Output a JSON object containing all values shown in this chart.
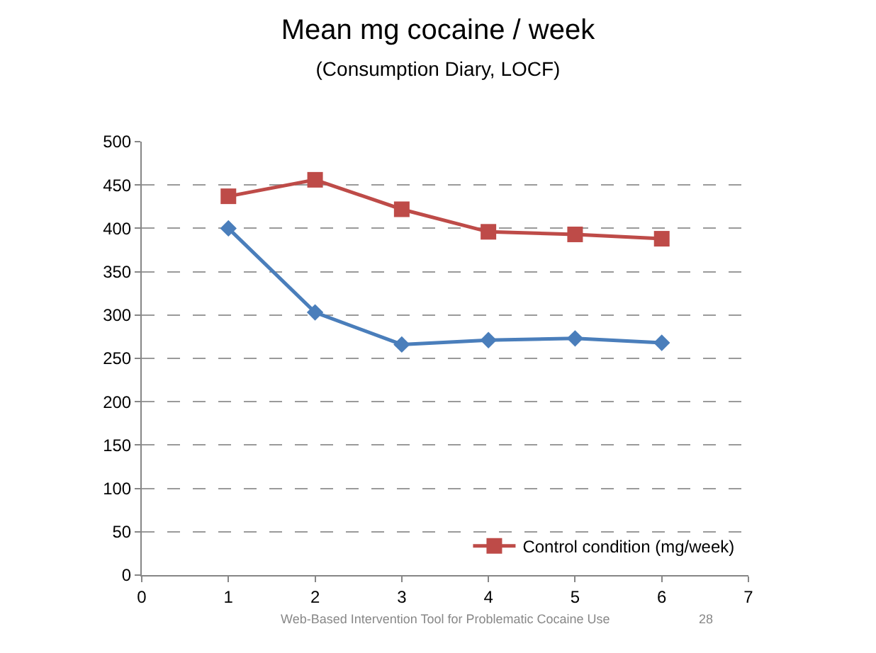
{
  "chart_data": {
    "type": "line",
    "title": "Mean mg cocaine / week",
    "subtitle": "(Consumption Diary, LOCF)",
    "x": [
      1,
      2,
      3,
      4,
      5,
      6
    ],
    "series": [
      {
        "color": "#4a7ebb",
        "marker": "diamond",
        "values": [
          400,
          303,
          266,
          271,
          273,
          268
        ]
      },
      {
        "name": "Control condition (mg/week)",
        "color": "#be4b48",
        "marker": "square",
        "values": [
          437,
          456,
          422,
          396,
          393,
          388
        ]
      }
    ],
    "xlim": [
      0,
      7
    ],
    "xticks": [
      0,
      1,
      2,
      3,
      4,
      5,
      6,
      7
    ],
    "ylim": [
      0,
      500
    ],
    "yticks": [
      0,
      50,
      100,
      150,
      200,
      250,
      300,
      350,
      400,
      450,
      500
    ],
    "grid": "y",
    "legend": "bottom right",
    "annotations": [
      "Web-Based Intervention Tool for Problematic Cocaine Use",
      "28"
    ]
  }
}
